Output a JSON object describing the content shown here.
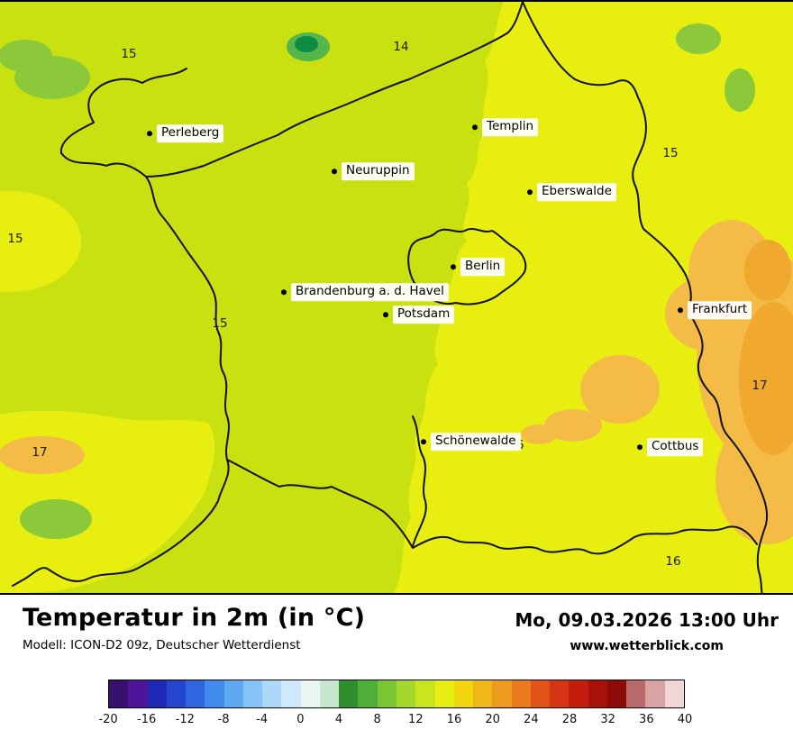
{
  "header": {
    "title": "Temperatur in 2m (in °C)",
    "model": "Modell: ICON-D2 09z, Deutscher Wetterdienst",
    "datetime": "Mo, 09.03.2026 13:00 Uhr",
    "website": "www.wetterblick.com"
  },
  "map": {
    "colors": {
      "base": "#c9e011",
      "yellow": "#e8ee10",
      "green": "#8cc93a",
      "green_bright": "#55b64b",
      "green_dark": "#0f8c44",
      "orange": "#f4bc47",
      "orange_deep": "#f0a92e",
      "border": "#111111"
    },
    "cities": [
      {
        "name": "Perleberg"
      },
      {
        "name": "Templin"
      },
      {
        "name": "Neuruppin"
      },
      {
        "name": "Eberswalde"
      },
      {
        "name": "Berlin"
      },
      {
        "name": "Brandenburg a. d. Havel"
      },
      {
        "name": "Potsdam"
      },
      {
        "name": "Frankfurt"
      },
      {
        "name": "Schönewalde"
      },
      {
        "name": "Cottbus"
      }
    ],
    "temps": [
      {
        "value": "15"
      },
      {
        "value": "14"
      },
      {
        "value": "15"
      },
      {
        "value": "15"
      },
      {
        "value": "15"
      },
      {
        "value": "17"
      },
      {
        "value": "17"
      },
      {
        "value": "16"
      },
      {
        "value": "16"
      }
    ]
  },
  "legend": {
    "unit": "°C",
    "labels": [
      "-20",
      "-16",
      "-12",
      "-8",
      "-4",
      "0",
      "4",
      "8",
      "12",
      "16",
      "20",
      "24",
      "28",
      "32",
      "36",
      "40"
    ],
    "colors": [
      "#38106e",
      "#50149b",
      "#1f2ab4",
      "#2746cf",
      "#2f66e0",
      "#3f8aec",
      "#5fa8f2",
      "#86c3f7",
      "#aed8fa",
      "#cfe9fc",
      "#e9f6f3",
      "#c7e8cd",
      "#2f8f2f",
      "#4fae38",
      "#79c534",
      "#a4d82c",
      "#c8e51e",
      "#e6ee12",
      "#f2d70e",
      "#f0b719",
      "#ee9a1f",
      "#ea7a1c",
      "#e25317",
      "#d63613",
      "#c41c0e",
      "#a8100a",
      "#8c0a08",
      "#b96a6a",
      "#d9a3a3",
      "#f2d6d6"
    ]
  }
}
